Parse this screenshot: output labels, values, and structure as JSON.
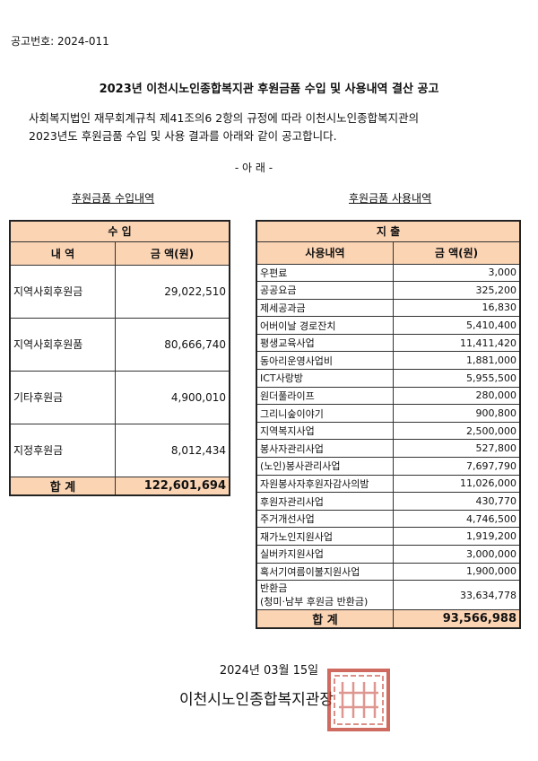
{
  "notice_number": "공고번호: 2024-011",
  "title": "2023년 이천시노인종합복지관 후원금품 수입 및 사용내역 결산 공고",
  "intro_line1": "사회복지법인 재무회계규칙 제41조의6 2항의 규정에 따라 이천시노인종합복지관의",
  "intro_line2": "2023년도 후원금품 수입 및 사용 결과를 아래와 같이 공고합니다.",
  "below": "- 아 래 -",
  "income": {
    "caption": "후원금품 수입내역",
    "header": "수 입",
    "col_item": "내 역",
    "col_amount": "금 액(원)",
    "rows": [
      {
        "item": "지역사회후원금",
        "amount": "29,022,510"
      },
      {
        "item": "지역사회후원품",
        "amount": "80,666,740"
      },
      {
        "item": "기타후원금",
        "amount": "4,900,010"
      },
      {
        "item": "지정후원금",
        "amount": "8,012,434"
      }
    ],
    "total_label": "합 계",
    "total": "122,601,694"
  },
  "expense": {
    "caption": "후원금품 사용내역",
    "header": "지 출",
    "col_item": "사용내역",
    "col_amount": "금 액(원)",
    "rows": [
      {
        "item": "우편료",
        "amount": "3,000"
      },
      {
        "item": "공공요금",
        "amount": "325,200"
      },
      {
        "item": "제세공과금",
        "amount": "16,830"
      },
      {
        "item": "어버이날 경로잔치",
        "amount": "5,410,400"
      },
      {
        "item": "평생교육사업",
        "amount": "11,411,420"
      },
      {
        "item": "동아리운영사업비",
        "amount": "1,881,000"
      },
      {
        "item": "ICT사랑방",
        "amount": "5,955,500"
      },
      {
        "item": "원더풀라이프",
        "amount": "280,000"
      },
      {
        "item": "그리니숲이야기",
        "amount": "900,800"
      },
      {
        "item": "지역복지사업",
        "amount": "2,500,000"
      },
      {
        "item": "봉사자관리사업",
        "amount": "527,800"
      },
      {
        "item": "(노인)봉사관리사업",
        "amount": "7,697,790"
      },
      {
        "item": "자원봉사자후원자감사의밤",
        "amount": "11,026,000"
      },
      {
        "item": "후원자관리사업",
        "amount": "430,770"
      },
      {
        "item": "주거개선사업",
        "amount": "4,746,500"
      },
      {
        "item": "재가노인지원사업",
        "amount": "1,919,200"
      },
      {
        "item": "실버카지원사업",
        "amount": "3,000,000"
      },
      {
        "item": "혹서기여름이불지원사업",
        "amount": "1,900,000"
      }
    ],
    "refund_item_line1": "반환금",
    "refund_item_line2": "(청미·남부 후원금 반환금)",
    "refund_amount": "33,634,778",
    "total_label": "합 계",
    "total": "93,566,988"
  },
  "date": "2024년 03월 15일",
  "signatory": "이천시노인종합복지관장",
  "seal_text": "이천시노인종합복지관장인",
  "colors": {
    "header_fill": "#fbd4b4",
    "seal": "#c0392b"
  }
}
